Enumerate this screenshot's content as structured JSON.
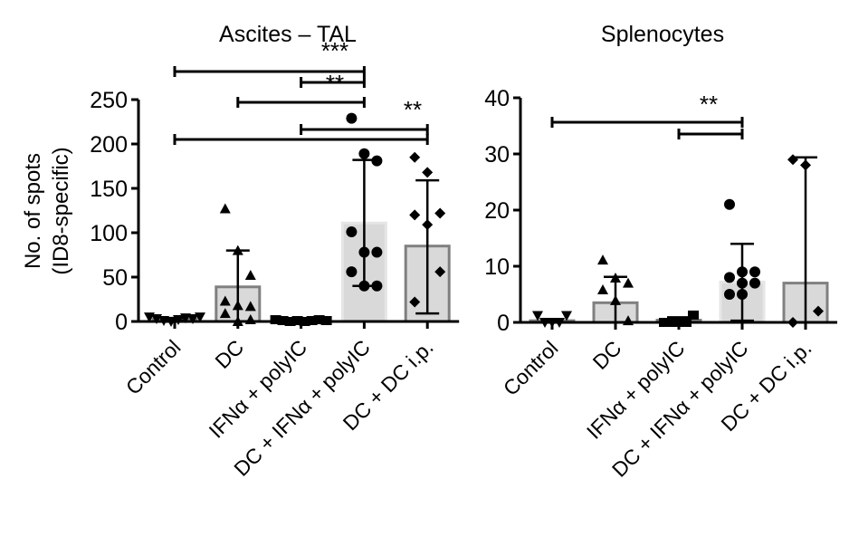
{
  "chart_data": [
    {
      "type": "bar",
      "title": "Ascites – TAL",
      "xlabel": "",
      "ylabel": "No. of spots",
      "ylabel2": "(ID8-specific)",
      "ylim": [
        0,
        250
      ],
      "yticks": [
        0,
        50,
        100,
        150,
        200,
        250
      ],
      "grid": false,
      "categories": [
        "Control",
        "DC",
        "IFNα + polyIC",
        "DC + IFNα + polyIC",
        "DC + DC i.p."
      ],
      "markers": [
        "triangle-down",
        "triangle-up",
        "square",
        "circle",
        "diamond"
      ],
      "bar_fill": [
        "#d9d9d9",
        "#d9d9d9",
        "#d9d9d9",
        "#d9d9d9",
        "#d9d9d9"
      ],
      "bar_edge": [
        "#808080",
        "#808080",
        "#808080",
        "#e6e6e6",
        "#808080"
      ],
      "means": [
        3,
        39,
        1,
        111,
        85
      ],
      "sd_upper": [
        4,
        80,
        2,
        182,
        159
      ],
      "sd_lower": [
        1,
        0,
        0,
        40,
        9
      ],
      "points": [
        [
          5,
          3,
          1,
          0,
          2,
          4,
          3,
          5
        ],
        [
          127,
          80,
          52,
          23,
          18,
          17,
          9,
          0,
          2
        ],
        [
          2,
          1,
          0,
          1,
          0,
          1,
          2,
          1
        ],
        [
          229,
          189,
          181,
          101,
          78,
          78,
          56,
          40,
          40
        ],
        [
          185,
          168,
          122,
          120,
          109,
          56,
          22
        ]
      ],
      "significance": [
        {
          "from": 0,
          "to": 3,
          "label": ""
        },
        {
          "from": 2,
          "to": 3,
          "label": "***"
        },
        {
          "from": 1,
          "to": 3,
          "label": "**"
        },
        {
          "from": 2,
          "to": 4,
          "label": "**"
        },
        {
          "from": 0,
          "to": 4,
          "label": ""
        }
      ]
    },
    {
      "type": "bar",
      "title": "Splenocytes",
      "xlabel": "",
      "ylabel": "",
      "ylim": [
        0,
        40
      ],
      "yticks": [
        0,
        10,
        20,
        30,
        40
      ],
      "grid": false,
      "categories": [
        "Control",
        "DC",
        "IFNα + polyIC",
        "DC + IFNα + polyIC",
        "DC + DC i.p."
      ],
      "markers": [
        "triangle-down",
        "triangle-up",
        "square",
        "circle",
        "diamond"
      ],
      "bar_fill": [
        "#d9d9d9",
        "#d9d9d9",
        "#d9d9d9",
        "#d9d9d9",
        "#d9d9d9"
      ],
      "bar_edge": [
        "#808080",
        "#808080",
        "#808080",
        "#e6e6e6",
        "#808080"
      ],
      "means": [
        0.3,
        3.5,
        0.4,
        7.2,
        7
      ],
      "sd_upper": [
        0.6,
        8.1,
        0.9,
        14,
        29.4
      ],
      "sd_lower": [
        0,
        0,
        0,
        0.3,
        0
      ],
      "points": [
        [
          1.2,
          0,
          0,
          0,
          1.2
        ],
        [
          11.1,
          7.9,
          7,
          5.8,
          3.9,
          0.3
        ],
        [
          0,
          0,
          0,
          0,
          1.3
        ],
        [
          21,
          9,
          9,
          8,
          7,
          7,
          5,
          5
        ],
        [
          29,
          28,
          2,
          0
        ]
      ],
      "significance": [
        {
          "from": 0,
          "to": 3,
          "label": "**"
        },
        {
          "from": 2,
          "to": 3,
          "label": ""
        }
      ]
    }
  ]
}
